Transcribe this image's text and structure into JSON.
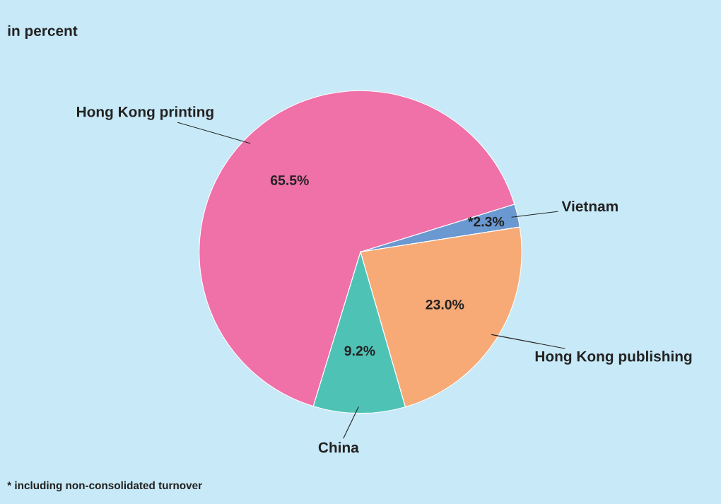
{
  "chart_data": {
    "type": "pie",
    "title": "in percent",
    "categories": [
      "Hong Kong printing",
      "Vietnam",
      "Hong Kong publishing",
      "China"
    ],
    "values": [
      65.5,
      2.3,
      23.0,
      9.2
    ],
    "value_labels": [
      "65.5%",
      "*2.3%",
      "23.0%",
      "9.2%"
    ],
    "colors": [
      "#f070a8",
      "#6a98d0",
      "#f7aa76",
      "#4fc2b6"
    ],
    "annotations": [
      "* including non-consolidated turnover"
    ]
  }
}
